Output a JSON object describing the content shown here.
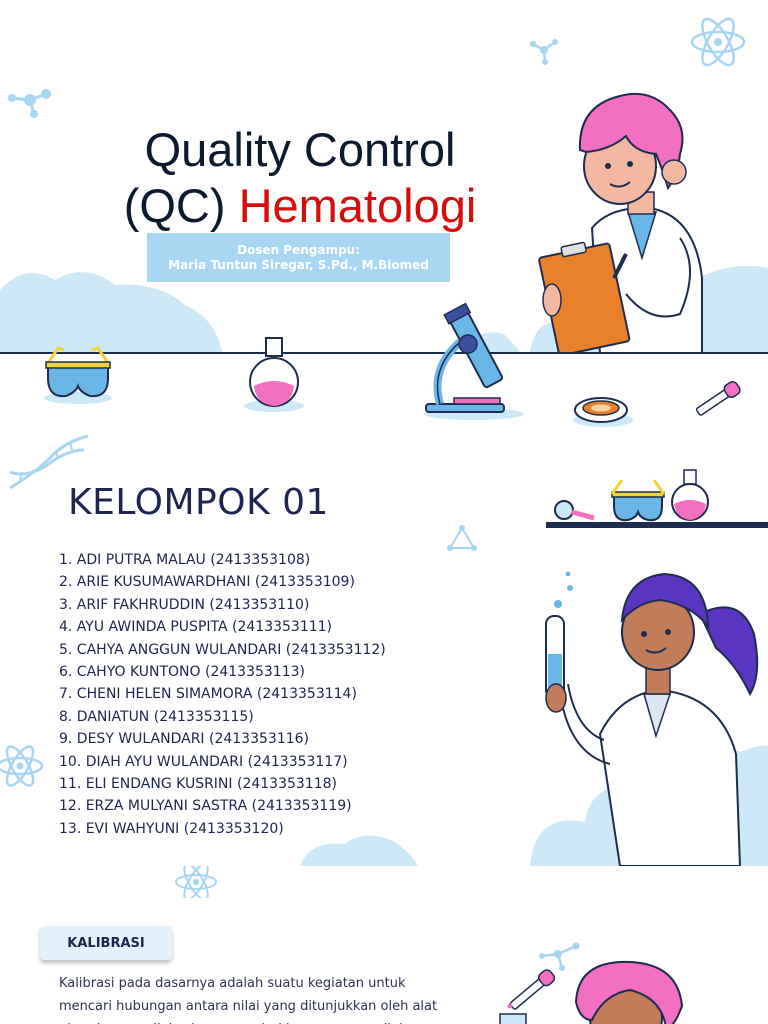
{
  "slide1": {
    "title_line1": "Quality Control",
    "title_line2_prefix": "(QC)",
    "title_line2_highlight": "Hematologi",
    "dosen_label": "Dosen Pengampu:",
    "dosen_name": "Maria Tuntun Siregar, S.Pd., M.Biomed"
  },
  "slide2": {
    "heading": "KELOMPOK 01",
    "members": [
      "1. ADI PUTRA MALAU (2413353108)",
      "2. ARIE KUSUMAWARDHANI (2413353109)",
      "3. ARIF FAKHRUDDIN (2413353110)",
      "4. AYU AWINDA PUSPITA (2413353111)",
      "5. CAHYA ANGGUN WULANDARI (2413353112)",
      "6. CAHYO KUNTONO (2413353113)",
      "7. CHENI HELEN SIMAMORA (2413353114)",
      "8. DANIATUN (2413353115)",
      "9. DESY WULANDARI (2413353116)",
      "10. DIAH AYU WULANDARI (2413353117)",
      "11. ELI ENDANG KUSRINI (2413353118)",
      "12. ERZA MULYANI SASTRA (2413353119)",
      "13. EVI WAHYUNI (2413353120)"
    ]
  },
  "slide3": {
    "badge": "KALIBRASI",
    "paragraph": "Kalibrasi pada dasarnya adalah suatu kegiatan untuk mencari hubungan antara nilai yang ditunjukkan oleh alat ukur dengan nilai sebenarnya dari besaran yang diukur."
  },
  "colors": {
    "title": "#0c1a2e",
    "highlight": "#d60d0d",
    "dosen_box": "#a7d6f2",
    "cloud": "#cde9f8",
    "text_dark": "#1d2550"
  },
  "icons": [
    "atom-icon",
    "molecule-icon",
    "dna-icon",
    "safety-goggles-icon",
    "flask-icon",
    "microscope-icon",
    "petri-dish-icon",
    "dropper-icon",
    "magnifier-icon",
    "test-tube-icon",
    "scientist-illustration"
  ]
}
